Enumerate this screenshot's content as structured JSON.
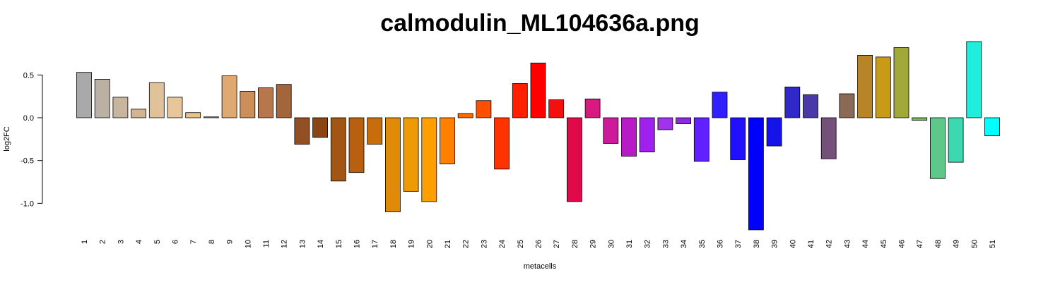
{
  "chart_data": {
    "type": "bar",
    "title": "calmodulin_ML104636a.png",
    "xlabel": "metacells",
    "ylabel": "log2FC",
    "categories": [
      "1",
      "2",
      "3",
      "4",
      "5",
      "6",
      "7",
      "8",
      "9",
      "10",
      "11",
      "12",
      "13",
      "14",
      "15",
      "16",
      "17",
      "18",
      "19",
      "20",
      "21",
      "22",
      "23",
      "24",
      "25",
      "26",
      "27",
      "28",
      "29",
      "30",
      "31",
      "32",
      "33",
      "34",
      "35",
      "36",
      "37",
      "38",
      "39",
      "40",
      "41",
      "42",
      "43",
      "44",
      "45",
      "46",
      "47",
      "48",
      "49",
      "50",
      "51"
    ],
    "values": [
      0.53,
      0.45,
      0.24,
      0.1,
      0.41,
      0.24,
      0.06,
      0.01,
      0.49,
      0.31,
      0.35,
      0.39,
      -0.31,
      -0.23,
      -0.74,
      -0.64,
      -0.31,
      -1.1,
      -0.86,
      -0.98,
      -0.54,
      0.05,
      0.2,
      -0.6,
      0.4,
      0.64,
      0.21,
      -0.98,
      0.22,
      -0.3,
      -0.45,
      -0.4,
      -0.14,
      -0.07,
      -0.51,
      0.3,
      -0.49,
      -1.31,
      -0.33,
      0.36,
      0.27,
      -0.48,
      0.28,
      0.73,
      0.71,
      0.82,
      -0.03,
      -0.71,
      -0.52,
      0.89,
      -0.21
    ],
    "colors": [
      "#a9a9a9",
      "#bbb0a4",
      "#c8b59e",
      "#d3b48e",
      "#dfc19a",
      "#e8c699",
      "#e8c287",
      "#d4b48a",
      "#dea872",
      "#cc8f5a",
      "#b8774a",
      "#a3663a",
      "#924f24",
      "#8b4513",
      "#a35514",
      "#b86010",
      "#c86d0c",
      "#e08a0a",
      "#ee9a05",
      "#ffa000",
      "#ff8000",
      "#ff6a00",
      "#ff5000",
      "#ff3300",
      "#ff2000",
      "#ff0000",
      "#f51010",
      "#e00a4a",
      "#d81a80",
      "#cc1a9a",
      "#b81ac8",
      "#a020f0",
      "#a032f0",
      "#8a2be2",
      "#6020ff",
      "#3020ff",
      "#2010ff",
      "#0000ff",
      "#1414e8",
      "#3028c8",
      "#4b38a8",
      "#75507b",
      "#8b6a55",
      "#b88428",
      "#c89a18",
      "#a0a838",
      "#78b850",
      "#5ec88a",
      "#3cd8b0",
      "#20eedd",
      "#00ffff"
    ],
    "ylim": [
      -1.31,
      0.89
    ],
    "yticks": [
      {
        "value": -1,
        "label": "-1.0"
      },
      -0.5,
      {
        "value": 0,
        "label": "0.0"
      },
      0.5
    ]
  }
}
